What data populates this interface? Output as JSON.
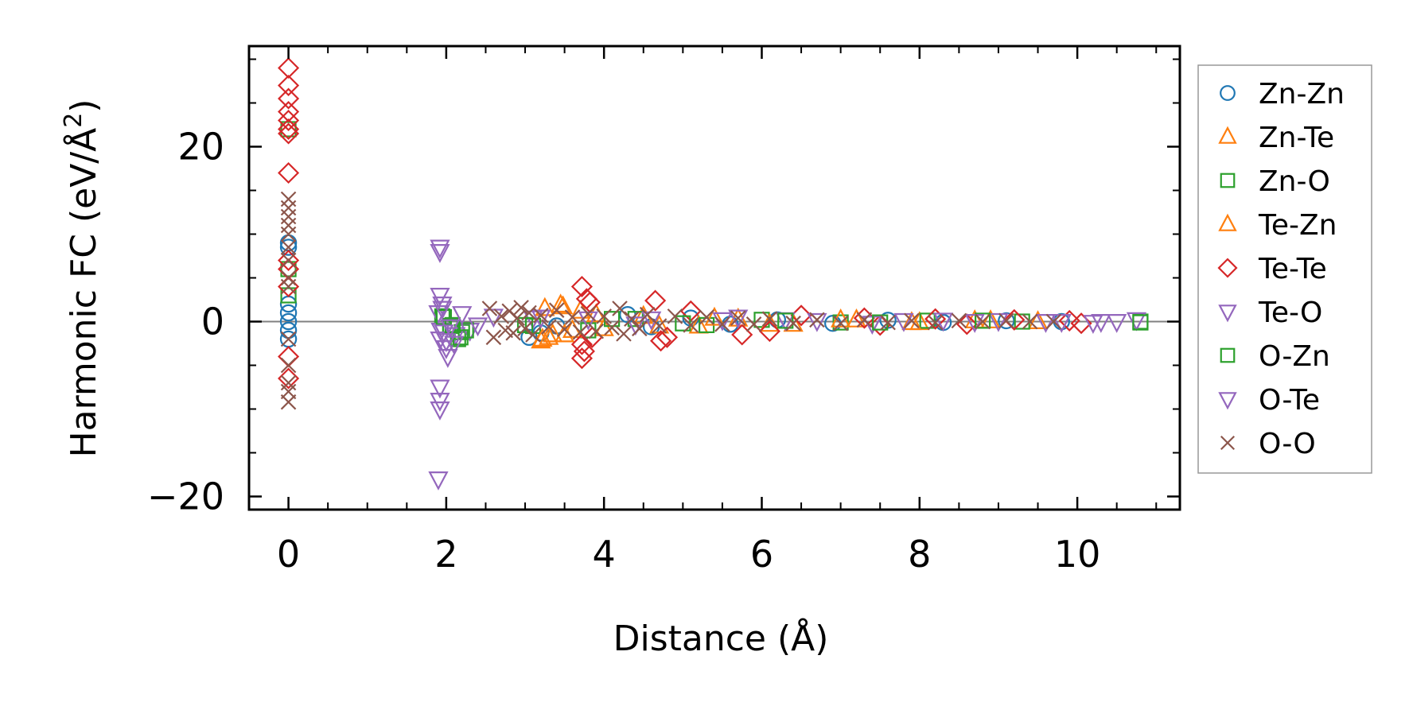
{
  "chart_data": {
    "type": "scatter",
    "xlabel": "Distance (Å)",
    "ylabel_main": "Harmonic FC (eV/Å",
    "ylabel_sup": "2",
    "ylabel_close": ")",
    "xlim": [
      -0.5,
      11.3
    ],
    "ylim": [
      -21.5,
      31.5
    ],
    "xticks": [
      0,
      2,
      4,
      6,
      8,
      10
    ],
    "xtick_labels": [
      "0",
      "2",
      "4",
      "6",
      "8",
      "10"
    ],
    "yticks": [
      -20,
      0,
      20
    ],
    "ytick_labels": [
      "−20",
      "0",
      "20"
    ],
    "zero_line": true,
    "grid": false,
    "legend_position": "outside-right",
    "series": [
      {
        "name": "Zn-Zn",
        "marker": "circle",
        "color": "#1f77b4",
        "points": [
          [
            0,
            9
          ],
          [
            0,
            8.5
          ],
          [
            0,
            2
          ],
          [
            0,
            1
          ],
          [
            0,
            0
          ],
          [
            0,
            -1
          ],
          [
            0,
            -2
          ],
          [
            3.05,
            -1.8
          ],
          [
            3.2,
            -1.3
          ],
          [
            3.4,
            -0.5
          ],
          [
            4.3,
            0.8
          ],
          [
            4.6,
            -0.6
          ],
          [
            5.1,
            0.4
          ],
          [
            5.6,
            -0.3
          ],
          [
            6.2,
            0.2
          ],
          [
            6.9,
            -0.2
          ],
          [
            7.6,
            0.15
          ],
          [
            8.3,
            -0.1
          ],
          [
            9.1,
            0.1
          ],
          [
            9.8,
            0
          ]
        ]
      },
      {
        "name": "Zn-Te",
        "marker": "triangle-up",
        "color": "#ff7f0e",
        "points": [
          [
            3.2,
            -2.2
          ],
          [
            3.3,
            -1.8
          ],
          [
            3.45,
            1.9
          ],
          [
            3.25,
            1.5
          ],
          [
            3.5,
            -1.5
          ],
          [
            3.7,
            1.2
          ],
          [
            4.0,
            -0.8
          ],
          [
            4.5,
            0.6
          ],
          [
            5.2,
            -0.5
          ],
          [
            5.7,
            0.3
          ],
          [
            6.4,
            -0.3
          ],
          [
            7.2,
            0.2
          ],
          [
            8.0,
            -0.1
          ],
          [
            8.7,
            0.1
          ],
          [
            9.5,
            0
          ]
        ]
      },
      {
        "name": "Zn-O",
        "marker": "square",
        "color": "#2ca02c",
        "points": [
          [
            0,
            22
          ],
          [
            0,
            6
          ],
          [
            0,
            3
          ],
          [
            1.95,
            0.6
          ],
          [
            2.05,
            -0.5
          ],
          [
            2.15,
            -2.0
          ],
          [
            2.2,
            -1.2
          ],
          [
            3.1,
            -0.5
          ],
          [
            3.8,
            -1.0
          ],
          [
            4.4,
            0.3
          ],
          [
            5.3,
            -0.4
          ],
          [
            6.0,
            0.2
          ],
          [
            7.0,
            -0.1
          ],
          [
            8.1,
            0.1
          ],
          [
            9.3,
            0
          ],
          [
            10.8,
            0
          ]
        ]
      },
      {
        "name": "Te-Zn",
        "marker": "triangle-up",
        "color": "#ff7f0e",
        "points": [
          [
            3.22,
            -2.0
          ],
          [
            3.35,
            -1.5
          ],
          [
            3.48,
            1.7
          ],
          [
            3.6,
            -1.0
          ],
          [
            3.9,
            0.8
          ],
          [
            4.7,
            -0.5
          ],
          [
            5.4,
            0.4
          ],
          [
            6.1,
            -0.3
          ],
          [
            7.0,
            0.2
          ],
          [
            7.9,
            -0.1
          ],
          [
            8.9,
            0.1
          ]
        ]
      },
      {
        "name": "Te-Te",
        "marker": "diamond",
        "color": "#d62728",
        "points": [
          [
            0,
            29
          ],
          [
            0,
            27
          ],
          [
            0,
            25.5
          ],
          [
            0,
            24
          ],
          [
            0,
            23
          ],
          [
            0,
            22
          ],
          [
            0,
            21.5
          ],
          [
            0,
            17
          ],
          [
            0,
            7
          ],
          [
            0,
            6
          ],
          [
            0,
            4
          ],
          [
            0,
            -4
          ],
          [
            0,
            -6.5
          ],
          [
            3.72,
            4
          ],
          [
            3.78,
            2.6
          ],
          [
            3.82,
            2.2
          ],
          [
            3.72,
            -2.6
          ],
          [
            3.75,
            -3.4
          ],
          [
            3.72,
            -4.2
          ],
          [
            3.85,
            -1.8
          ],
          [
            4.65,
            2.4
          ],
          [
            4.72,
            -2.2
          ],
          [
            4.8,
            -1.8
          ],
          [
            5.1,
            1.2
          ],
          [
            5.75,
            -1.5
          ],
          [
            6.1,
            -1.1
          ],
          [
            6.5,
            0.7
          ],
          [
            7.3,
            0.4
          ],
          [
            7.5,
            -0.4
          ],
          [
            8.2,
            0.3
          ],
          [
            8.6,
            -0.3
          ],
          [
            9.2,
            0.2
          ],
          [
            9.9,
            0.1
          ],
          [
            10.05,
            -0.2
          ]
        ]
      },
      {
        "name": "Te-O",
        "marker": "triangle-down",
        "color": "#9467bd",
        "points": [
          [
            1.92,
            8.5
          ],
          [
            1.92,
            8
          ],
          [
            1.92,
            -7.5
          ],
          [
            1.92,
            -9
          ],
          [
            1.92,
            -10
          ],
          [
            1.9,
            -18
          ],
          [
            1.92,
            3
          ],
          [
            1.95,
            2
          ],
          [
            1.9,
            1
          ],
          [
            1.93,
            -1
          ],
          [
            1.92,
            -2
          ],
          [
            2.0,
            -3
          ],
          [
            2.02,
            -4
          ],
          [
            2.12,
            -1.5
          ],
          [
            2.3,
            -1.0
          ],
          [
            2.6,
            0.6
          ],
          [
            3.1,
            0.4
          ],
          [
            3.8,
            0.3
          ],
          [
            4.4,
            -0.3
          ],
          [
            5.7,
            0.5
          ],
          [
            6.3,
            0.2
          ],
          [
            7.4,
            -0.2
          ],
          [
            8.3,
            0.15
          ],
          [
            9.0,
            0.1
          ],
          [
            9.8,
            0
          ],
          [
            10.3,
            0
          ],
          [
            10.5,
            0
          ],
          [
            10.75,
            0.2
          ]
        ]
      },
      {
        "name": "O-Zn",
        "marker": "square",
        "color": "#2ca02c",
        "points": [
          [
            1.97,
            0.5
          ],
          [
            2.08,
            -0.4
          ],
          [
            2.18,
            -1.8
          ],
          [
            2.25,
            -1.0
          ],
          [
            3.0,
            -0.4
          ],
          [
            4.1,
            0.3
          ],
          [
            5.0,
            -0.2
          ],
          [
            6.3,
            0.1
          ],
          [
            7.5,
            -0.1
          ],
          [
            8.8,
            0.1
          ],
          [
            10.8,
            -0.1
          ]
        ]
      },
      {
        "name": "O-Te",
        "marker": "triangle-down",
        "color": "#9467bd",
        "points": [
          [
            1.95,
            1.5
          ],
          [
            1.97,
            -1.2
          ],
          [
            2.0,
            -2.2
          ],
          [
            2.05,
            -0.6
          ],
          [
            2.1,
            -2.5
          ],
          [
            2.2,
            0.9
          ],
          [
            2.4,
            -0.4
          ],
          [
            3.2,
            0.5
          ],
          [
            4.6,
            0.3
          ],
          [
            5.5,
            0.2
          ],
          [
            6.7,
            0.1
          ],
          [
            7.8,
            0.1
          ],
          [
            8.7,
            0
          ],
          [
            9.6,
            0
          ],
          [
            10.2,
            -0.1
          ]
        ]
      },
      {
        "name": "O-O",
        "marker": "x",
        "color": "#8c564b",
        "points": [
          [
            0,
            14
          ],
          [
            0,
            13
          ],
          [
            0,
            12
          ],
          [
            0,
            11
          ],
          [
            0,
            10
          ],
          [
            0,
            8.5
          ],
          [
            0,
            7
          ],
          [
            0,
            5
          ],
          [
            0,
            4
          ],
          [
            0,
            -2
          ],
          [
            0,
            -5
          ],
          [
            0,
            -7
          ],
          [
            0,
            -8
          ],
          [
            0,
            -9.2
          ],
          [
            2.55,
            1.5
          ],
          [
            2.6,
            -1.8
          ],
          [
            2.7,
            0.6
          ],
          [
            2.75,
            -1.0
          ],
          [
            2.8,
            1.2
          ],
          [
            2.85,
            -1.3
          ],
          [
            2.9,
            0.4
          ],
          [
            2.95,
            1.6
          ],
          [
            3.0,
            -0.8
          ],
          [
            3.05,
            1.0
          ],
          [
            3.1,
            -1.5
          ],
          [
            3.2,
            0.7
          ],
          [
            3.3,
            -0.6
          ],
          [
            3.4,
            1.3
          ],
          [
            3.5,
            -0.9
          ],
          [
            3.6,
            0.5
          ],
          [
            3.7,
            -1.2
          ],
          [
            3.8,
            0.9
          ],
          [
            3.9,
            -1.1
          ],
          [
            4.0,
            0.6
          ],
          [
            4.1,
            -0.7
          ],
          [
            4.2,
            1.5
          ],
          [
            4.25,
            -1.4
          ],
          [
            4.35,
            0.3
          ],
          [
            4.45,
            -0.8
          ],
          [
            4.55,
            0.8
          ],
          [
            4.7,
            -0.5
          ],
          [
            4.9,
            0.6
          ],
          [
            5.1,
            -0.4
          ],
          [
            5.3,
            0.5
          ],
          [
            5.5,
            -0.3
          ],
          [
            5.7,
            0.4
          ],
          [
            5.9,
            -0.3
          ],
          [
            6.1,
            0.3
          ],
          [
            6.4,
            -0.2
          ],
          [
            6.7,
            0.2
          ],
          [
            7.0,
            -0.2
          ],
          [
            7.3,
            0.2
          ],
          [
            7.6,
            -0.1
          ],
          [
            7.9,
            0.1
          ],
          [
            8.2,
            -0.1
          ],
          [
            8.5,
            0.1
          ],
          [
            8.8,
            0
          ],
          [
            9.1,
            0.1
          ],
          [
            9.4,
            0
          ],
          [
            9.7,
            0
          ]
        ]
      }
    ]
  }
}
